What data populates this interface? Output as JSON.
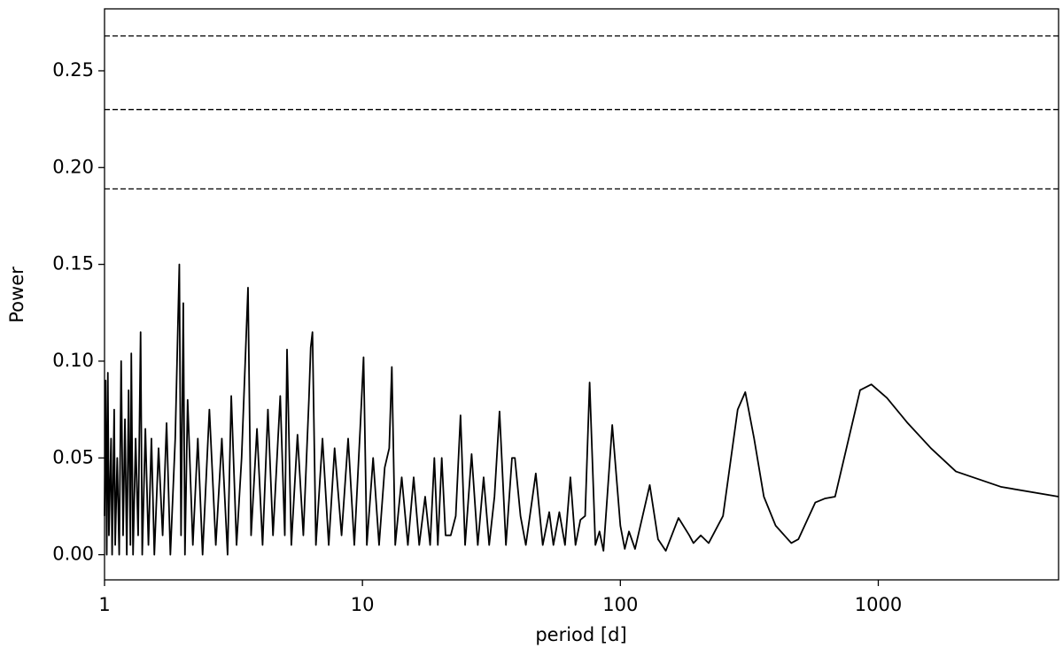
{
  "chart_data": {
    "type": "line",
    "xlabel": "period [d]",
    "ylabel": "Power",
    "xscale": "log",
    "xlim": [
      1,
      5000
    ],
    "xticks": [
      1,
      10,
      100,
      1000
    ],
    "ylim": [
      -0.013,
      0.282
    ],
    "yticks": [
      {
        "value": 0,
        "label": "0.00"
      },
      {
        "value": 0.05,
        "label": "0.05"
      },
      {
        "value": 0.1,
        "label": "0.10"
      },
      {
        "value": 0.15,
        "label": "0.15"
      },
      {
        "value": 0.2,
        "label": "0.20"
      },
      {
        "value": 0.25,
        "label": "0.25"
      }
    ],
    "hlines": [
      0.268,
      0.23,
      0.189
    ],
    "hline_color": "#000000",
    "color": "#000000",
    "x": [
      1.0,
      1.01,
      1.02,
      1.03,
      1.04,
      1.06,
      1.07,
      1.09,
      1.1,
      1.12,
      1.14,
      1.16,
      1.18,
      1.2,
      1.22,
      1.24,
      1.26,
      1.27,
      1.29,
      1.32,
      1.35,
      1.38,
      1.4,
      1.44,
      1.48,
      1.52,
      1.56,
      1.62,
      1.68,
      1.74,
      1.8,
      1.88,
      1.95,
      1.98,
      2.02,
      2.05,
      2.1,
      2.2,
      2.3,
      2.4,
      2.55,
      2.7,
      2.85,
      3.0,
      3.1,
      3.25,
      3.4,
      3.6,
      3.7,
      3.9,
      4.1,
      4.3,
      4.5,
      4.8,
      5.0,
      5.1,
      5.3,
      5.6,
      5.9,
      6.2,
      6.3,
      6.4,
      6.6,
      7.0,
      7.4,
      7.8,
      8.3,
      8.8,
      9.3,
      9.8,
      10.1,
      10.4,
      11.0,
      11.6,
      12.2,
      12.7,
      13.0,
      13.4,
      14.2,
      15.0,
      15.8,
      16.6,
      17.5,
      18.3,
      19.0,
      19.6,
      20.3,
      21.0,
      22.0,
      23,
      24,
      25,
      26.5,
      28,
      29.5,
      31,
      32.5,
      34,
      36,
      38,
      39,
      41,
      43,
      47,
      50,
      53,
      55,
      58,
      61,
      64,
      67,
      70,
      73,
      76,
      80,
      83,
      86,
      93,
      100,
      104,
      108,
      114,
      130,
      140,
      150,
      168,
      185,
      192,
      205,
      220,
      250,
      285,
      305,
      330,
      360,
      400,
      460,
      490,
      570,
      620,
      680,
      850,
      940,
      1080,
      1300,
      1600,
      2000,
      3000,
      5000
    ],
    "values": [
      0.02,
      0.09,
      0.0,
      0.094,
      0.01,
      0.06,
      0.0,
      0.075,
      0.005,
      0.05,
      0.0,
      0.1,
      0.01,
      0.07,
      0.0,
      0.085,
      0.005,
      0.104,
      0.0,
      0.06,
      0.01,
      0.115,
      0.0,
      0.065,
      0.005,
      0.06,
      0.0,
      0.055,
      0.01,
      0.068,
      0.0,
      0.06,
      0.15,
      0.01,
      0.13,
      0.0,
      0.08,
      0.005,
      0.06,
      0.0,
      0.075,
      0.005,
      0.06,
      0.0,
      0.082,
      0.005,
      0.05,
      0.138,
      0.01,
      0.065,
      0.005,
      0.075,
      0.01,
      0.082,
      0.01,
      0.106,
      0.005,
      0.062,
      0.01,
      0.08,
      0.107,
      0.115,
      0.005,
      0.06,
      0.005,
      0.055,
      0.01,
      0.06,
      0.005,
      0.065,
      0.102,
      0.005,
      0.05,
      0.005,
      0.045,
      0.055,
      0.097,
      0.005,
      0.04,
      0.005,
      0.04,
      0.005,
      0.03,
      0.005,
      0.05,
      0.005,
      0.05,
      0.01,
      0.01,
      0.02,
      0.072,
      0.005,
      0.052,
      0.005,
      0.04,
      0.005,
      0.03,
      0.074,
      0.005,
      0.05,
      0.05,
      0.02,
      0.005,
      0.042,
      0.005,
      0.022,
      0.005,
      0.022,
      0.005,
      0.04,
      0.005,
      0.018,
      0.02,
      0.089,
      0.005,
      0.012,
      0.002,
      0.067,
      0.015,
      0.003,
      0.012,
      0.003,
      0.036,
      0.008,
      0.002,
      0.019,
      0.01,
      0.006,
      0.01,
      0.006,
      0.02,
      0.075,
      0.084,
      0.06,
      0.03,
      0.015,
      0.006,
      0.008,
      0.027,
      0.029,
      0.03,
      0.085,
      0.088,
      0.081,
      0.068,
      0.055,
      0.043,
      0.035,
      0.03
    ]
  }
}
